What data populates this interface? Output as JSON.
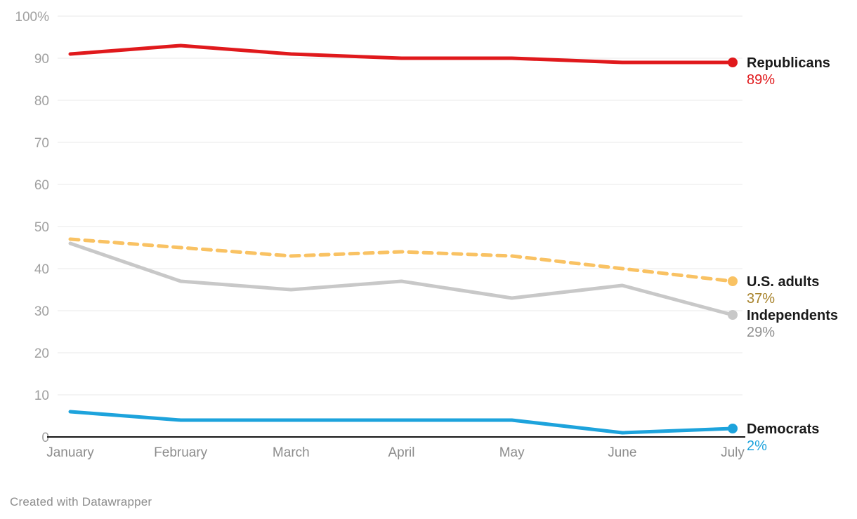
{
  "chart_data": {
    "type": "line",
    "title": "",
    "categories": [
      "January",
      "February",
      "March",
      "April",
      "May",
      "June",
      "July"
    ],
    "series": [
      {
        "name": "Republicans",
        "values": [
          91,
          93,
          91,
          90,
          90,
          89,
          89
        ],
        "color": "#e0191c",
        "label_color": "#e0191c",
        "end_label": "89%",
        "style": "solid"
      },
      {
        "name": "U.S. adults",
        "values": [
          47,
          45,
          43,
          44,
          43,
          40,
          37
        ],
        "color": "#f9c263",
        "label_color": "#a8832c",
        "end_label": "37%",
        "style": "dashed"
      },
      {
        "name": "Independents",
        "values": [
          46,
          37,
          35,
          37,
          33,
          36,
          29
        ],
        "color": "#c8c8c8",
        "label_color": "#8f8f8f",
        "end_label": "29%",
        "style": "solid"
      },
      {
        "name": "Democrats",
        "values": [
          6,
          4,
          4,
          4,
          4,
          1,
          2
        ],
        "color": "#1da3dc",
        "label_color": "#1da3dc",
        "end_label": "2%",
        "style": "solid"
      }
    ],
    "ylim": [
      0,
      100
    ],
    "ytick_step": 10,
    "ytick_top_label": "100%",
    "grid": true,
    "legend_position": "right-end-labels",
    "colors": {
      "gridline": "#e8e8e8",
      "axis_line": "#161616",
      "tick_label": "#a0a0a0",
      "month_label": "#8c8c8c",
      "series_name_label": "#1a1a1a"
    }
  },
  "footer": {
    "credit": "Created with Datawrapper"
  }
}
